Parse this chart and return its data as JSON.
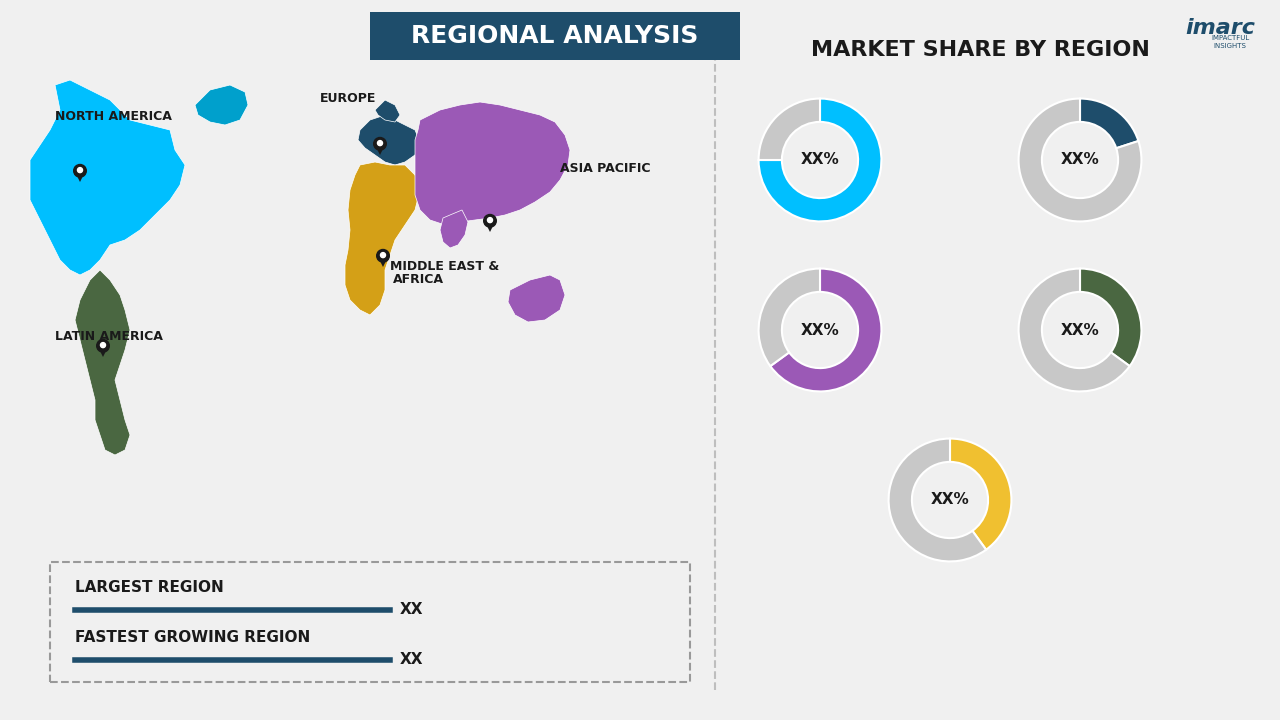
{
  "title": "REGIONAL ANALYSIS",
  "title_bg_color": "#1e4d6b",
  "title_text_color": "#ffffff",
  "bg_color": "#f0f0f0",
  "right_panel_title": "MARKET SHARE BY REGION",
  "donut_colors": [
    "#00bfff",
    "#1e4d6b",
    "#9b59b6",
    "#4a6741",
    "#f0c030"
  ],
  "donut_gray": "#c8c8c8",
  "donut_labels": [
    "XX%",
    "XX%",
    "XX%",
    "XX%",
    "XX%"
  ],
  "donut_values": [
    75,
    20,
    65,
    35,
    40
  ],
  "region_colors": {
    "north_america": "#00bfff",
    "europe": "#1e4d6b",
    "asia_pacific": "#9b59b6",
    "middle_east_africa": "#d4a017",
    "latin_america": "#4a6741"
  },
  "region_labels": [
    "NORTH AMERICA",
    "EUROPE",
    "ASIA PACIFIC",
    "MIDDLE EAST &\nAFRICA",
    "LATIN AMERICA"
  ],
  "legend_largest": "LARGEST REGION",
  "legend_fastest": "FASTEST GROWING REGION",
  "legend_xx": "XX",
  "legend_line_color": "#1e4d6b",
  "divider_color": "#aaaaaa",
  "imarc_text_color": "#1e4d6b"
}
